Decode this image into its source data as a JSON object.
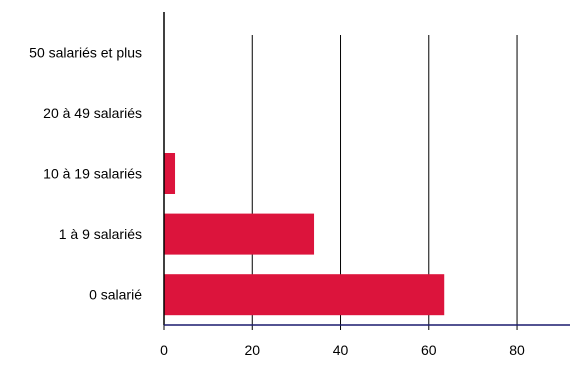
{
  "chart_data": {
    "type": "bar",
    "orientation": "horizontal",
    "categories": [
      "50 salariés et plus",
      "20 à 49 salariés",
      "10 à 19 salariés",
      "1 à 9 salariés",
      "0 salarié"
    ],
    "values": [
      0,
      0,
      2.5,
      34,
      63.5
    ],
    "x_ticks": [
      "0",
      "20",
      "40",
      "60",
      "80"
    ],
    "xlim": [
      0,
      92
    ],
    "grid": "vertical",
    "title": "",
    "xlabel": "",
    "ylabel": "",
    "bar_color": "#dc143c",
    "axis_color": "#000000",
    "baseline_color": "#1a1a6e"
  }
}
